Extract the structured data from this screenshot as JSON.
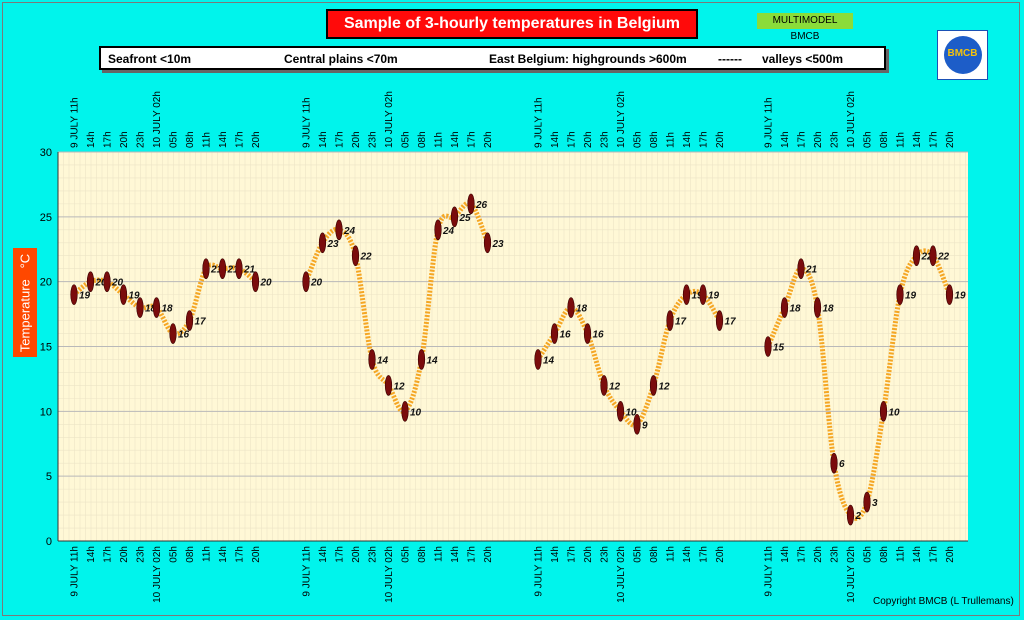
{
  "title": "Sample of 3-hourly temperatures in Belgium",
  "badge": "MULTIMODEL BMCB",
  "legend": {
    "seafront": "Seafront <10m",
    "central": "Central plains <70m",
    "east": "East Belgium: highgrounds >600m",
    "dash": "------",
    "valleys": "valleys <500m"
  },
  "logo_text": "BMCB",
  "ylabel": "Temperature   °C",
  "copyright": "Copyright BMCB (L Trullemans)",
  "colors": {
    "background": "#00f4ec",
    "plot": "#fff8d6",
    "curve": "#f5a623",
    "marker": "#7a0c0c",
    "title_bg": "#ff0a0a",
    "ylabel_bg": "#ff4800"
  },
  "chart_data": {
    "type": "line",
    "ylim": [
      0,
      30
    ],
    "yticks": [
      0,
      5,
      10,
      15,
      20,
      25,
      30
    ],
    "grid": true,
    "x_labels": [
      "9 JULY 11h",
      "14h",
      "17h",
      "20h",
      "23h",
      "10 JULY 02h",
      "05h",
      "08h",
      "11h",
      "14h",
      "17h",
      "20h"
    ],
    "series": [
      {
        "name": "Seafront <10m",
        "values": [
          19,
          20,
          20,
          19,
          18,
          18,
          16,
          17,
          21,
          21,
          21,
          20
        ]
      },
      {
        "name": "Central plains <70m",
        "values": [
          20,
          23,
          24,
          22,
          14,
          12,
          10,
          14,
          24,
          25,
          26,
          23
        ]
      },
      {
        "name": "East Belgium: highgrounds >600m",
        "values": [
          14,
          16,
          18,
          16,
          12,
          10,
          9,
          12,
          17,
          19,
          19,
          17
        ]
      },
      {
        "name": "valleys <500m",
        "values": [
          15,
          18,
          21,
          18,
          6,
          2,
          3,
          10,
          19,
          22,
          22,
          19
        ]
      }
    ]
  }
}
